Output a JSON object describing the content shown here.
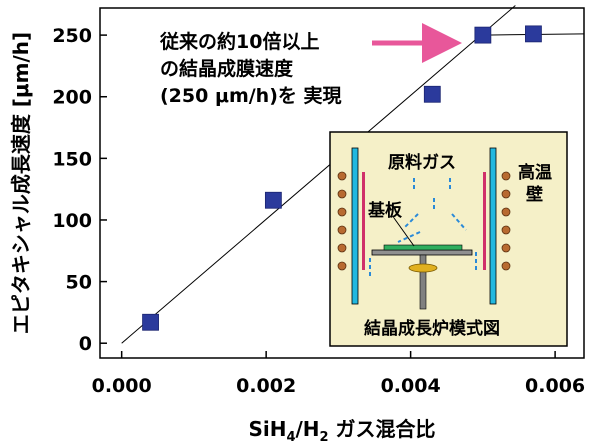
{
  "chart_data": {
    "type": "scatter",
    "xlabel": "SiH4/H2 ガス混合比",
    "xlabel_parts": {
      "base": "SiH",
      "sub1": "4",
      "mid": "/H",
      "sub2": "2",
      "tail": " ガス混合比"
    },
    "ylabel": "エピタキシャル成長速度 [μm/h]",
    "xlim": [
      -0.0003,
      0.0064
    ],
    "ylim": [
      -12,
      272
    ],
    "x_ticks": [
      0.0,
      0.002,
      0.004,
      0.006
    ],
    "x_tick_labels": [
      "0.000",
      "0.002",
      "0.004",
      "0.006"
    ],
    "y_ticks": [
      0,
      50,
      100,
      150,
      200,
      250
    ],
    "y_tick_labels": [
      "0",
      "50",
      "100",
      "150",
      "200",
      "250"
    ],
    "grid": false,
    "legend": "none",
    "marker_color": "#2b3a9c",
    "series": [
      {
        "x": [
          0.0004,
          0.0021,
          0.0043,
          0.005,
          0.0057
        ],
        "y": [
          17,
          116,
          202,
          250,
          251
        ]
      }
    ],
    "fit_line": {
      "x": [
        0.0,
        0.00545
      ],
      "y": [
        0,
        274
      ]
    },
    "plateau_line": {
      "x": [
        0.005,
        0.0064
      ],
      "y": [
        250,
        251
      ]
    },
    "annotation": {
      "lines": [
        "従来の約10倍以上",
        "の結晶成膜速度",
        "(250 μm/h)を 実現"
      ],
      "arrow_color": "#e8579a"
    },
    "inset": {
      "background": "#f5f0c8",
      "labels": {
        "source_gas": "原料ガス",
        "hot_wall_1": "高温",
        "hot_wall_2": "壁",
        "substrate": "基板",
        "caption": "結晶成長炉模式図"
      }
    }
  }
}
